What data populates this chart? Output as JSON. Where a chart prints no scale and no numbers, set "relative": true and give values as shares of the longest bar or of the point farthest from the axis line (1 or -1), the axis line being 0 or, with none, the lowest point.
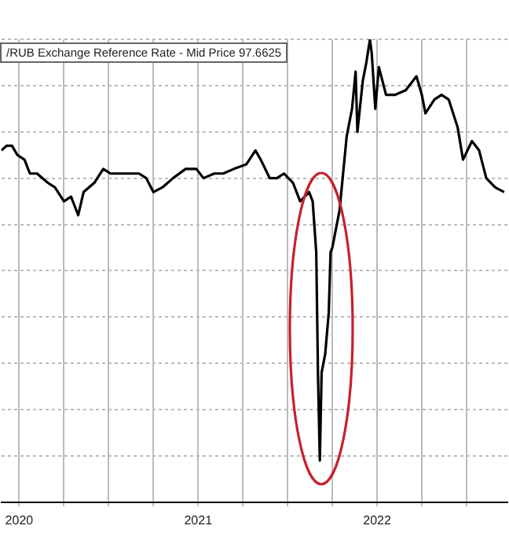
{
  "chart_data": {
    "type": "line",
    "title": "/RUB Exchange Reference Rate - Mid Price 97.6625",
    "relative": true,
    "grid": true,
    "legend": false,
    "marker": "none",
    "line_style": "solid",
    "x": [
      2020.4,
      2020.43,
      2020.46,
      2020.49,
      2020.53,
      2020.56,
      2020.6,
      2020.66,
      2020.7,
      2020.75,
      2020.79,
      2020.83,
      2020.86,
      2020.92,
      2020.97,
      2021.01,
      2021.05,
      2021.11,
      2021.17,
      2021.21,
      2021.25,
      2021.3,
      2021.36,
      2021.43,
      2021.49,
      2021.53,
      2021.59,
      2021.64,
      2021.7,
      2021.77,
      2021.82,
      2021.85,
      2021.9,
      2021.94,
      2021.98,
      2022.03,
      2022.07,
      2022.12,
      2022.14,
      2022.16,
      2022.17,
      2022.18,
      2022.19,
      2022.21,
      2022.23,
      2022.24,
      2022.25,
      2022.29,
      2022.31,
      2022.33,
      2022.36,
      2022.38,
      2022.39,
      2022.42,
      2022.44,
      2022.46,
      2022.47,
      2022.49,
      2022.51,
      2022.55,
      2022.6,
      2022.66,
      2022.72,
      2022.75,
      2022.77,
      2022.82,
      2022.86,
      2022.9,
      2022.95,
      2022.98,
      2023.03,
      2023.07,
      2023.11,
      2023.16,
      2023.21
    ],
    "series": [
      {
        "color": "#000000",
        "values": [
          0.76,
          0.77,
          0.77,
          0.75,
          0.74,
          0.71,
          0.71,
          0.69,
          0.68,
          0.65,
          0.66,
          0.62,
          0.67,
          0.69,
          0.72,
          0.71,
          0.71,
          0.71,
          0.71,
          0.7,
          0.67,
          0.68,
          0.7,
          0.72,
          0.72,
          0.7,
          0.71,
          0.71,
          0.72,
          0.73,
          0.76,
          0.74,
          0.7,
          0.7,
          0.71,
          0.69,
          0.65,
          0.67,
          0.65,
          0.54,
          0.27,
          0.09,
          0.28,
          0.32,
          0.41,
          0.54,
          0.55,
          0.63,
          0.71,
          0.79,
          0.85,
          0.93,
          0.8,
          0.91,
          0.95,
          1.0,
          0.97,
          0.85,
          0.94,
          0.88,
          0.88,
          0.89,
          0.92,
          0.88,
          0.84,
          0.87,
          0.88,
          0.87,
          0.81,
          0.74,
          0.78,
          0.76,
          0.7,
          0.68,
          0.67
        ]
      }
    ],
    "xlim": [
      2020.4,
      2023.23
    ],
    "xticks": [
      {
        "value": 2020.5,
        "label": "2020"
      },
      {
        "value": 2020.75,
        "label": null
      },
      {
        "value": 2021,
        "label": null
      },
      {
        "value": 2021.25,
        "label": null
      },
      {
        "value": 2021.5,
        "label": "2021"
      },
      {
        "value": 2021.75,
        "label": null
      },
      {
        "value": 2022,
        "label": null
      },
      {
        "value": 2022.25,
        "label": null
      },
      {
        "value": 2022.5,
        "label": "2022"
      },
      {
        "value": 2022.75,
        "label": null
      },
      {
        "value": 2023,
        "label": null
      }
    ]
  }
}
